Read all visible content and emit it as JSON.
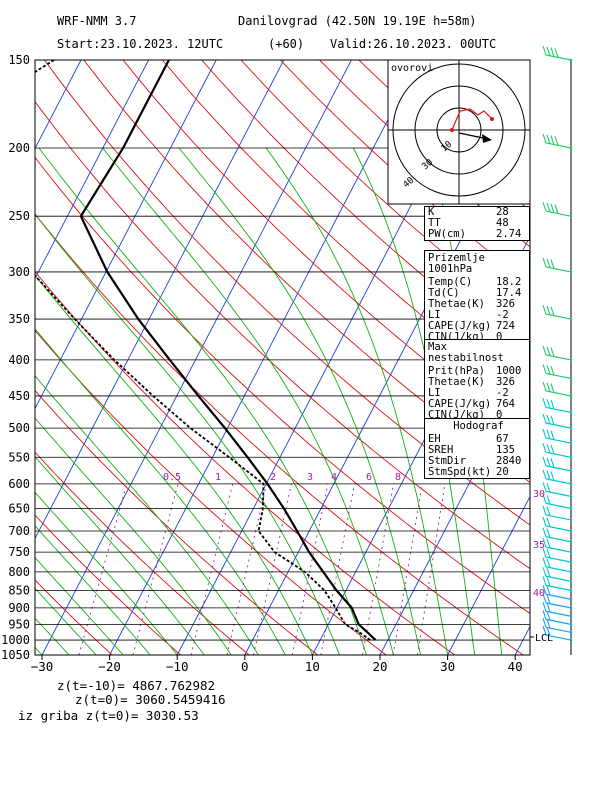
{
  "header": {
    "model": "WRF-NMM 3.7",
    "station": "Danilovgrad (42.50N 19.19E h=58m)",
    "start": "Start:23.10.2023. 12UTC",
    "lead": "(+60)",
    "valid": "Valid:26.10.2023. 00UTC"
  },
  "chart_data": {
    "type": "line",
    "pressure_ticks": [
      150,
      200,
      250,
      300,
      350,
      400,
      450,
      500,
      550,
      600,
      650,
      700,
      750,
      800,
      850,
      900,
      950,
      1000,
      1050
    ],
    "temp_ticks": [
      -30,
      -20,
      -10,
      0,
      10,
      20,
      30,
      40
    ],
    "x_range_celsius_at_1050hPa": [
      -30,
      42
    ],
    "y_range_hPa": [
      150,
      1050
    ],
    "mixing_ratio_labels": [
      "0.5",
      "1",
      "2",
      "3",
      "4",
      "6",
      "8"
    ],
    "wind_speed_labels": [
      "30",
      "35",
      "40"
    ],
    "lcl_label": "LCL",
    "series": [
      {
        "name": "temperature",
        "color": "#000000",
        "points": [
          [
            1000,
            18.2
          ],
          [
            975,
            16.4
          ],
          [
            950,
            14.5
          ],
          [
            900,
            12.2
          ],
          [
            850,
            8.6
          ],
          [
            800,
            5.2
          ],
          [
            750,
            1.6
          ],
          [
            700,
            -1.8
          ],
          [
            650,
            -5.5
          ],
          [
            600,
            -9.8
          ],
          [
            550,
            -14.8
          ],
          [
            500,
            -20.4
          ],
          [
            450,
            -26.8
          ],
          [
            400,
            -33.8
          ],
          [
            350,
            -41.6
          ],
          [
            300,
            -49.8
          ],
          [
            250,
            -58.0
          ],
          [
            200,
            -57.0
          ],
          [
            150,
            -57.0
          ]
        ]
      },
      {
        "name": "dewpoint",
        "color": "#000000",
        "dashed": true,
        "points": [
          [
            1000,
            17.4
          ],
          [
            975,
            15.2
          ],
          [
            950,
            12.5
          ],
          [
            900,
            9.8
          ],
          [
            850,
            6.8
          ],
          [
            800,
            2.5
          ],
          [
            750,
            -3.5
          ],
          [
            700,
            -7.5
          ],
          [
            650,
            -8.6
          ],
          [
            600,
            -10.4
          ],
          [
            550,
            -17.5
          ],
          [
            500,
            -25.5
          ],
          [
            450,
            -33.5
          ],
          [
            400,
            -42.0
          ],
          [
            350,
            -51.0
          ],
          [
            300,
            -61.0
          ],
          [
            270,
            -68.0
          ],
          [
            250,
            -77.0
          ],
          [
            200,
            -82.0
          ],
          [
            170,
            -80.0
          ],
          [
            150,
            -74.0
          ]
        ]
      }
    ]
  },
  "hodograph": {
    "label": "ovorovi",
    "ring_labels": [
      "10",
      "30",
      "40"
    ]
  },
  "indices": {
    "rows": [
      {
        "k": "K",
        "v": "28"
      },
      {
        "k": "TT",
        "v": "48"
      },
      {
        "k": "PW(cm)",
        "v": "2.74"
      }
    ]
  },
  "surface": {
    "title": "Prizemlje 1001hPa",
    "rows": [
      {
        "k": "Temp(C)",
        "v": "18.2"
      },
      {
        "k": "Td(C)",
        "v": "17.4"
      },
      {
        "k": "Thetae(K)",
        "v": "326"
      },
      {
        "k": "LI",
        "v": "-2"
      },
      {
        "k": "CAPE(J/kg)",
        "v": "724"
      },
      {
        "k": "CIN(J/kg)",
        "v": "0"
      }
    ]
  },
  "max_instability": {
    "title": "Max nestabilnost",
    "rows": [
      {
        "k": "Prit(hPa)",
        "v": "1000"
      },
      {
        "k": "Thetae(K)",
        "v": "326"
      },
      {
        "k": "LI",
        "v": "-2"
      },
      {
        "k": "CAPE(J/kg)",
        "v": "764"
      },
      {
        "k": "CIN(J/kg)",
        "v": "0"
      }
    ]
  },
  "hodograf": {
    "title": "Hodograf",
    "rows": [
      {
        "k": "EH",
        "v": "67"
      },
      {
        "k": "SREH",
        "v": "135"
      },
      {
        "k": "StmDir",
        "v": "2840"
      },
      {
        "k": "StmSpd(kt)",
        "v": "20"
      }
    ]
  },
  "footer": {
    "z1": "z(t=-10)= 4867.762982",
    "z2": "z(t=0)= 3060.5459416",
    "z3": "iz griba z(t=0)= 3030.53"
  },
  "colors": {
    "isotherm": "#1a3fd8",
    "dry_adiabat": "#e01010",
    "moist_adiabat": "#12b212",
    "mixing_ratio": "#a020a0",
    "wind": "#00c8c8"
  }
}
